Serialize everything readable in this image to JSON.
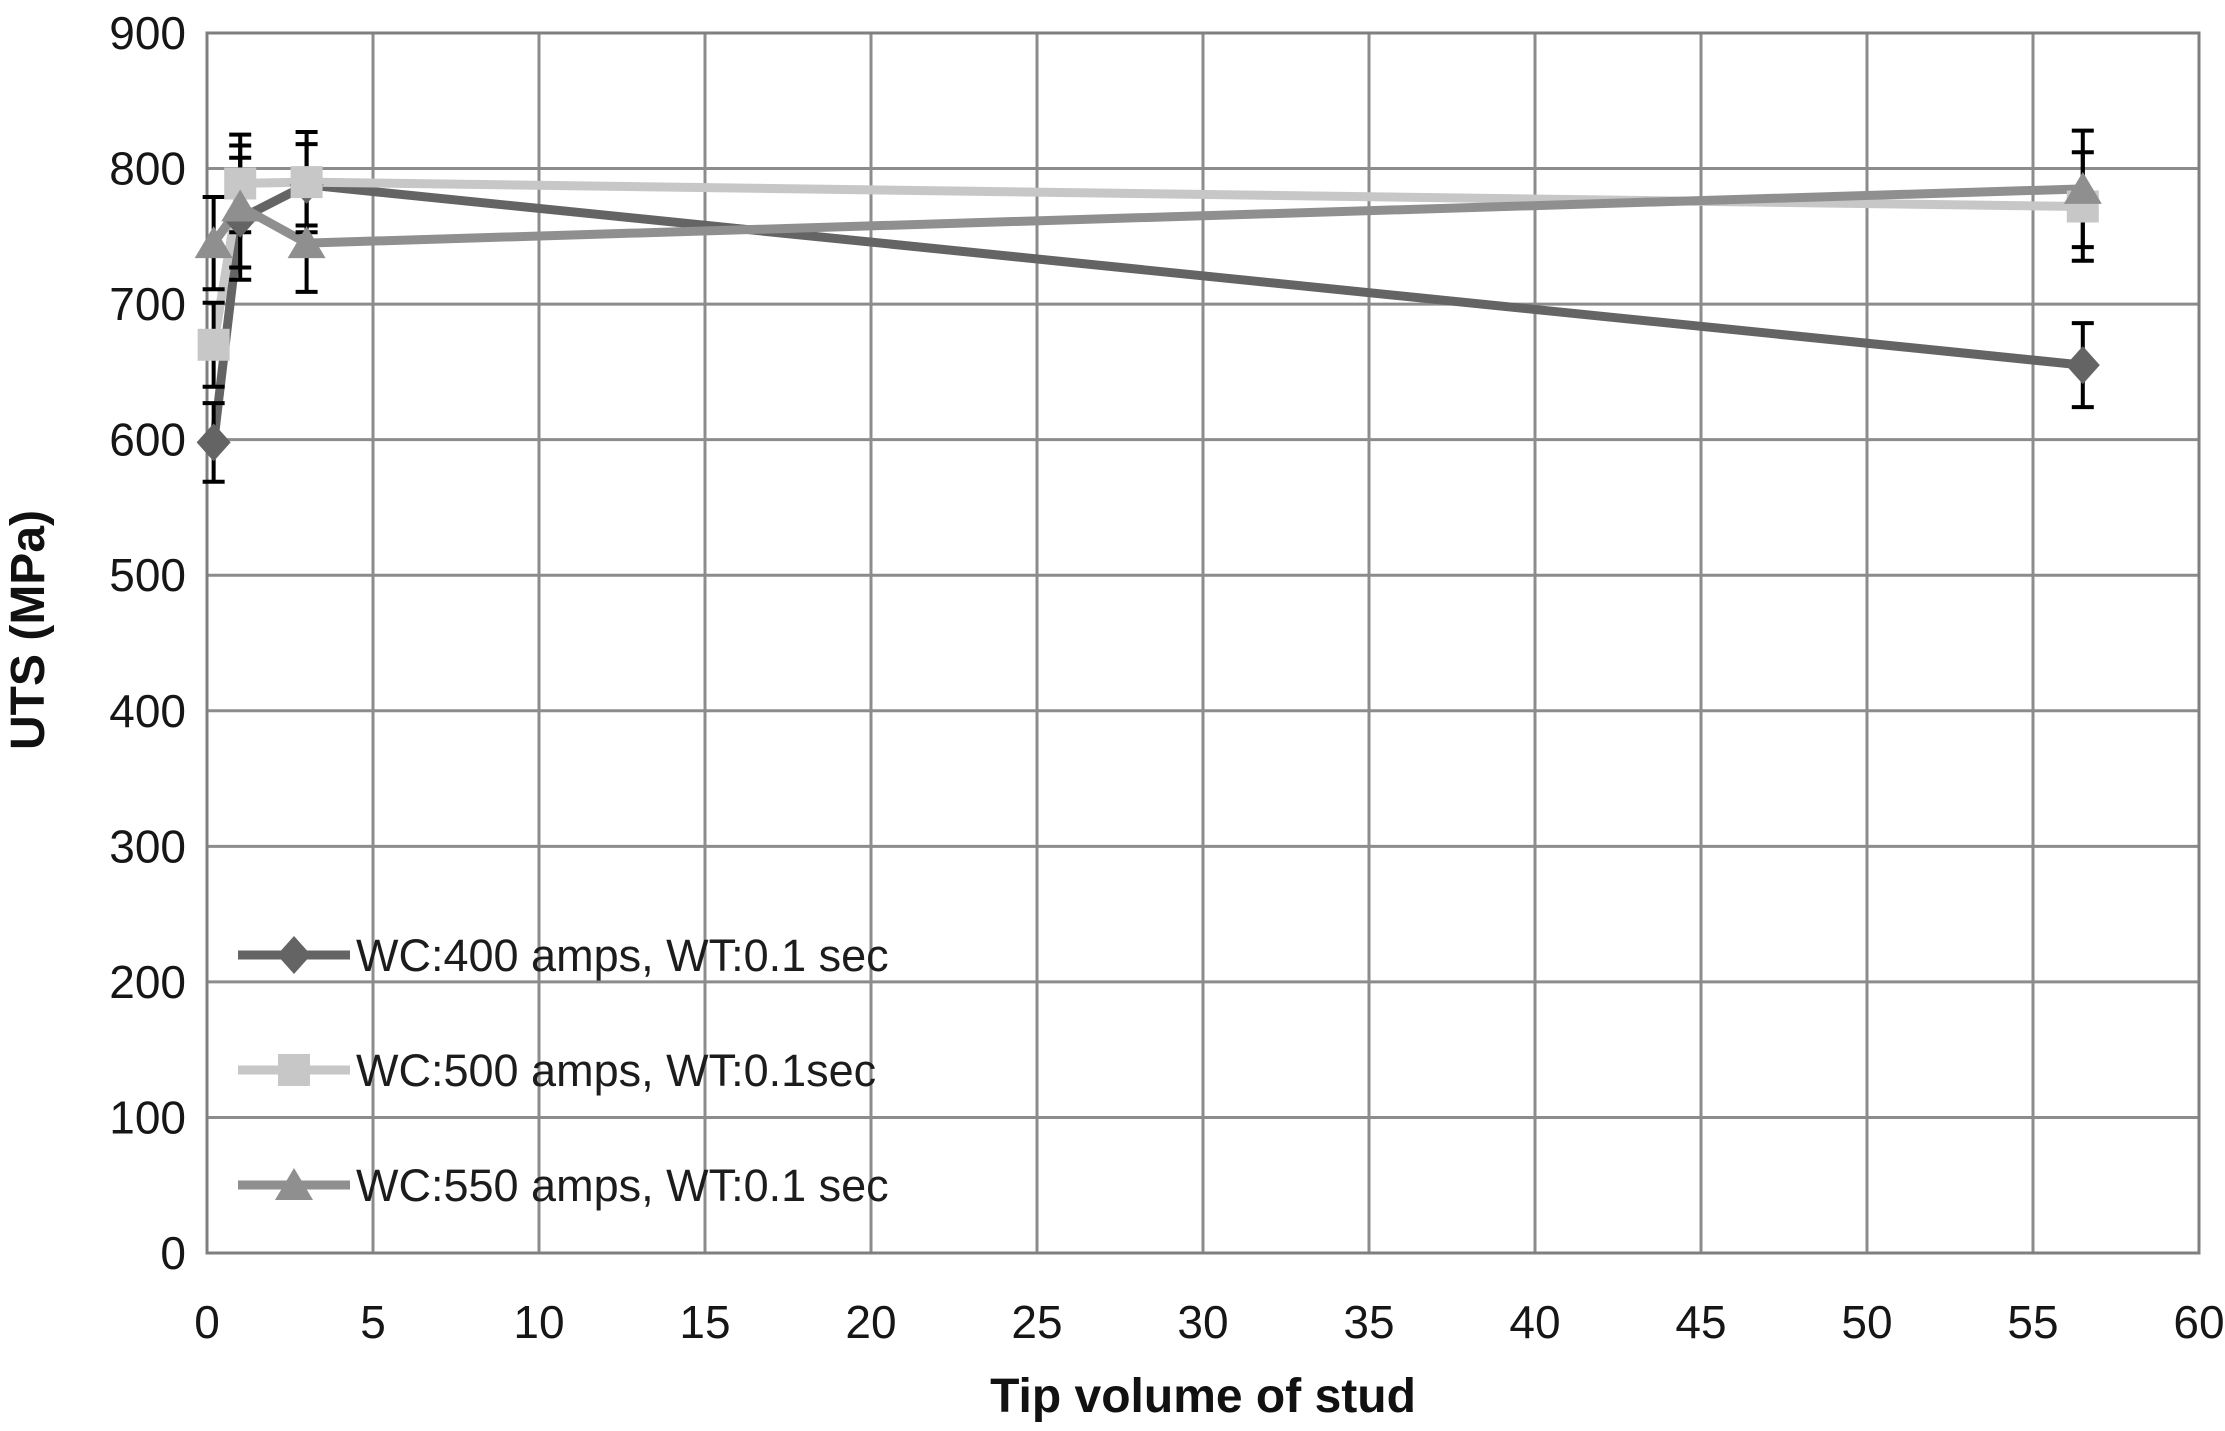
{
  "chart_data": {
    "type": "line",
    "title": "",
    "xlabel": "Tip volume of stud",
    "ylabel": "UTS (MPa)",
    "xlim": [
      0,
      60
    ],
    "ylim": [
      0,
      900
    ],
    "x_ticks": [
      0,
      5,
      10,
      15,
      20,
      25,
      30,
      35,
      40,
      45,
      50,
      55,
      60
    ],
    "y_ticks": [
      0,
      100,
      200,
      300,
      400,
      500,
      600,
      700,
      800,
      900
    ],
    "grid": true,
    "legend_position": "inside-lower-left",
    "error_bars": true,
    "styles": {
      "grid_color": "#8c8c8c",
      "border_color": "#7f7f7f",
      "error_bar_color": "#000000",
      "background": "#ffffff"
    },
    "series": [
      {
        "name": "WC:400 amps, WT:0.1 sec",
        "marker": "diamond",
        "color": "#646464",
        "points": [
          {
            "x": 0.2,
            "y": 598,
            "err": 29
          },
          {
            "x": 1,
            "y": 763,
            "err": 45
          },
          {
            "x": 3,
            "y": 788,
            "err": 30
          },
          {
            "x": 56.5,
            "y": 655,
            "err": 31
          }
        ]
      },
      {
        "name": "WC:500 amps, WT:0.1sec",
        "marker": "square",
        "color": "#c7c7c7",
        "points": [
          {
            "x": 0.2,
            "y": 670,
            "err": 31
          },
          {
            "x": 1,
            "y": 789,
            "err": 36
          },
          {
            "x": 3,
            "y": 790,
            "err": 37
          },
          {
            "x": 56.5,
            "y": 772,
            "err": 40
          }
        ]
      },
      {
        "name": "WC:550 amps, WT:0.1 sec",
        "marker": "triangle",
        "color": "#8f8f8f",
        "points": [
          {
            "x": 0.2,
            "y": 745,
            "err": 34
          },
          {
            "x": 1,
            "y": 772,
            "err": 45
          },
          {
            "x": 3,
            "y": 745,
            "err": 36
          },
          {
            "x": 56.5,
            "y": 785,
            "err": 43
          }
        ]
      }
    ]
  }
}
